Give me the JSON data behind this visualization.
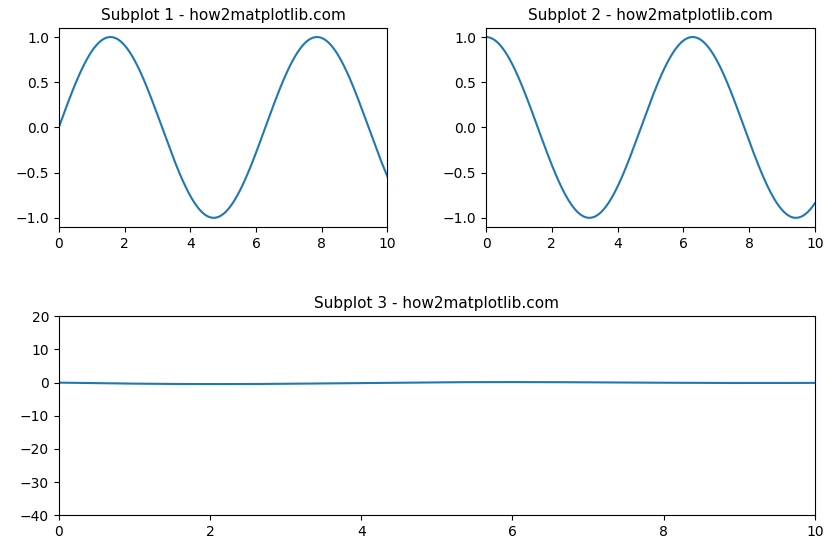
{
  "title1": "Subplot 1 - how2matplotlib.com",
  "title2": "Subplot 2 - how2matplotlib.com",
  "title3": "Subplot 3 - how2matplotlib.com",
  "line_color": "#1f77b4",
  "background_color": "#ffffff",
  "figsize": [
    8.4,
    5.6
  ],
  "dpi": 100,
  "x_start": 0.01,
  "x_end": 10,
  "n_points": 3000,
  "title_fontsize": 11,
  "ylim3": [
    -40,
    20
  ],
  "xlim": [
    0,
    10
  ]
}
